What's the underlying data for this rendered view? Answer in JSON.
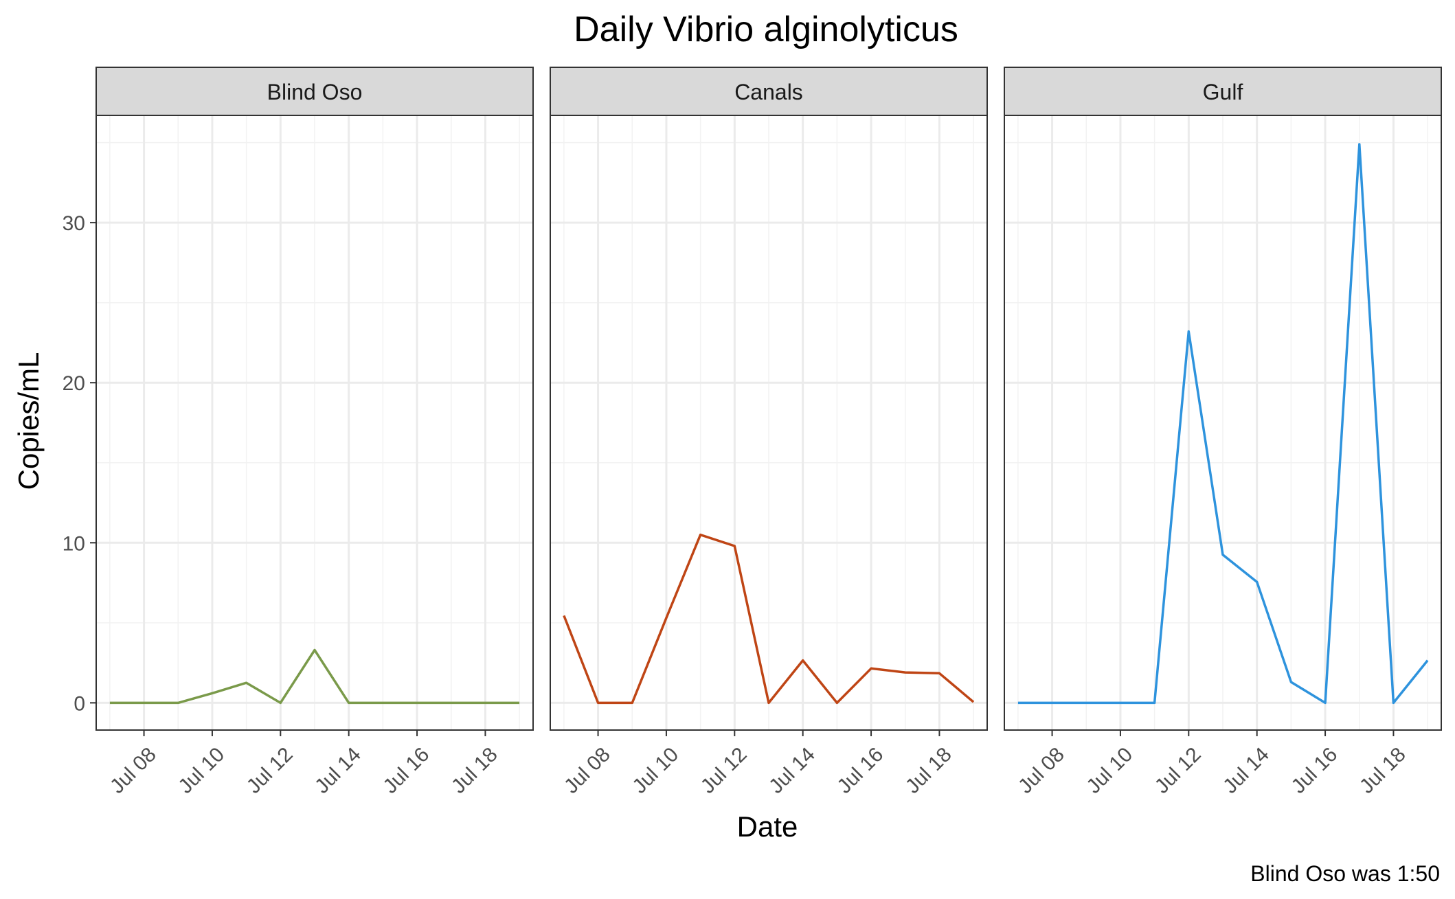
{
  "chart_data": {
    "type": "line",
    "title": "Daily Vibrio alginolyticus",
    "xlabel": "Date",
    "ylabel": "Copies/mL",
    "caption": "Blind Oso was 1:50",
    "x": [
      "2024-07-07",
      "2024-07-08",
      "2024-07-09",
      "2024-07-10",
      "2024-07-11",
      "2024-07-12",
      "2024-07-13",
      "2024-07-14",
      "2024-07-15",
      "2024-07-16",
      "2024-07-17",
      "2024-07-18",
      "2024-07-19"
    ],
    "xticks": [
      "Jul 08",
      "Jul 10",
      "Jul 12",
      "Jul 14",
      "Jul 16",
      "Jul 18"
    ],
    "xtick_dates": [
      "2024-07-08",
      "2024-07-10",
      "2024-07-12",
      "2024-07-14",
      "2024-07-16",
      "2024-07-18"
    ],
    "yticks": [
      0,
      10,
      20,
      30
    ],
    "ylim": [
      -1.7,
      36.7
    ],
    "xlim": [
      "2024-07-06",
      "2024-07-19"
    ],
    "grid": true,
    "panels": [
      {
        "name": "Blind Oso",
        "color": "#7a9a4a",
        "values": [
          0,
          0,
          0,
          0.6,
          1.25,
          0,
          3.3,
          0,
          0,
          0,
          0,
          0,
          0
        ]
      },
      {
        "name": "Canals",
        "color": "#bf4515",
        "values": [
          5.45,
          0,
          0,
          5.3,
          10.5,
          9.8,
          0,
          2.65,
          0,
          2.15,
          1.9,
          1.85,
          0.05
        ]
      },
      {
        "name": "Gulf",
        "color": "#2e93dd",
        "values": [
          0,
          0,
          0,
          0,
          0,
          23.2,
          9.25,
          7.55,
          1.3,
          0,
          34.9,
          0,
          2.65
        ]
      }
    ]
  }
}
